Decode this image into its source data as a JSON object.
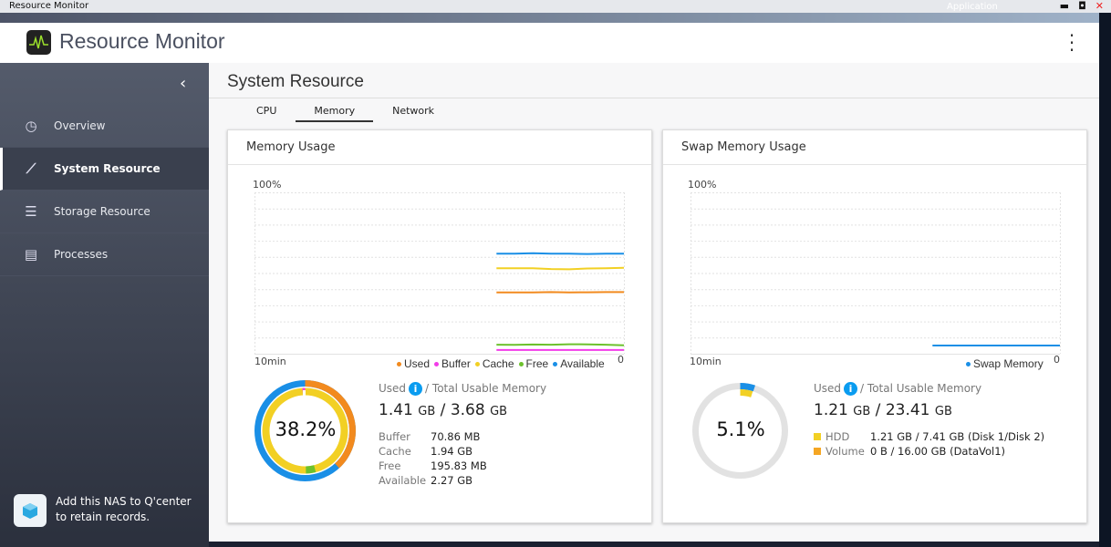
{
  "window": {
    "title": "Resource Monitor",
    "bg_label": "Application"
  },
  "app": {
    "title": "Resource Monitor"
  },
  "sidebar": {
    "items": [
      {
        "label": "Overview"
      },
      {
        "label": "System Resource"
      },
      {
        "label": "Storage Resource"
      },
      {
        "label": "Processes"
      }
    ],
    "qcenter": {
      "line1": "Add this NAS to Q'center",
      "line2": "to retain records."
    }
  },
  "main": {
    "title": "System Resource",
    "tabs": [
      {
        "label": "CPU"
      },
      {
        "label": "Memory"
      },
      {
        "label": "Network"
      }
    ]
  },
  "memory": {
    "title": "Memory Usage",
    "y_top": "100%",
    "x_left": "10min",
    "x_right": "0",
    "legend": [
      "Used",
      "Buffer",
      "Cache",
      "Free",
      "Available"
    ],
    "used_label": "Used",
    "total_label": "/ Total Usable Memory",
    "used": "1.41",
    "total": "3.68",
    "unit": "GB",
    "sep": "/",
    "percent": "38.2%",
    "rows": [
      {
        "k": "Buffer",
        "v": "70.86 MB"
      },
      {
        "k": "Cache",
        "v": "1.94 GB"
      },
      {
        "k": "Free",
        "v": "195.83 MB"
      },
      {
        "k": "Available",
        "v": "2.27 GB"
      }
    ]
  },
  "swap": {
    "title": "Swap Memory Usage",
    "y_top": "100%",
    "x_left": "10min",
    "x_right": "0",
    "legend": "Swap Memory",
    "used_label": "Used",
    "total_label": "/ Total Usable Memory",
    "used": "1.21",
    "total": "23.41",
    "unit": "GB",
    "sep": "/",
    "percent": "5.1%",
    "rows": [
      {
        "k": "HDD",
        "v": "1.21 GB / 7.41 GB (Disk 1/Disk 2)"
      },
      {
        "k": "Volume",
        "v": "0 B / 16.00 GB (DataVol1)"
      }
    ]
  },
  "chart_data": [
    {
      "type": "line",
      "title": "Memory Usage",
      "ylim": [
        0,
        100
      ],
      "xlabel": "10min → 0",
      "series": [
        {
          "name": "Available",
          "color": "#1a8fe6",
          "values": [
            62,
            62,
            62.3,
            62,
            62,
            61.8,
            62,
            62
          ]
        },
        {
          "name": "Cache",
          "color": "#f2d024",
          "values": [
            53,
            53,
            53,
            52.5,
            52.3,
            52.8,
            53,
            53.3
          ]
        },
        {
          "name": "Used",
          "color": "#f28a1e",
          "values": [
            38,
            38,
            38,
            38.2,
            38,
            38.1,
            38.2,
            38.2
          ]
        },
        {
          "name": "Free",
          "color": "#6cc12c",
          "values": [
            5.6,
            5.5,
            5.7,
            5.6,
            5.9,
            5.8,
            5.6,
            5.2
          ]
        },
        {
          "name": "Buffer",
          "color": "#f23ce8",
          "values": [
            2.3,
            2.3,
            2.3,
            2.3,
            2.3,
            2.3,
            2.3,
            2.3
          ]
        }
      ]
    },
    {
      "type": "line",
      "title": "Swap Memory Usage",
      "ylim": [
        0,
        100
      ],
      "series": [
        {
          "name": "Swap Memory",
          "color": "#1a8fe6",
          "values": [
            5.1,
            5.1,
            5.1,
            5.1,
            5.1,
            5.1,
            5.1,
            5.1
          ]
        }
      ]
    }
  ],
  "colors": {
    "used": "#f28a1e",
    "buffer": "#f23ce8",
    "cache": "#f2d024",
    "free": "#6cc12c",
    "available": "#1a8fe6",
    "hdd": "#f2d024",
    "volume": "#f5a623"
  }
}
